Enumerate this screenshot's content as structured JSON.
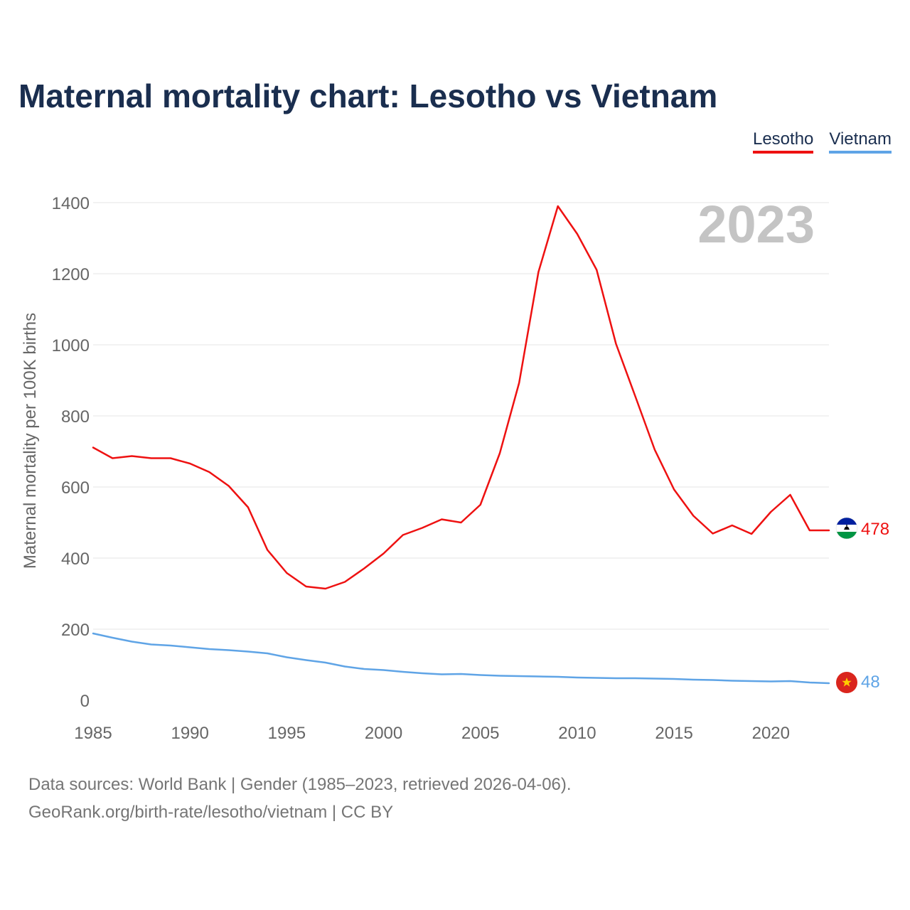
{
  "title": "Maternal mortality chart: Lesotho vs Vietnam",
  "legend": [
    {
      "name": "Lesotho",
      "color": "#ee1111"
    },
    {
      "name": "Vietnam",
      "color": "#5fa4e6"
    }
  ],
  "footer": {
    "source": "Data sources: World Bank | Gender (1985–2023, retrieved 2026-04-06).",
    "link": "GeoRank.org/birth-rate/lesotho/vietnam | CC BY"
  },
  "chart_data": {
    "type": "line",
    "title": "Maternal mortality chart: Lesotho vs Vietnam",
    "xlabel": "",
    "ylabel": "Maternal mortality per 100K births",
    "year_label": "2023",
    "xlim": [
      1985,
      2023
    ],
    "ylim": [
      0,
      1400
    ],
    "x_ticks": [
      1985,
      1990,
      1995,
      2000,
      2005,
      2010,
      2015,
      2020
    ],
    "y_ticks": [
      0,
      200,
      400,
      600,
      800,
      1000,
      1200,
      1400
    ],
    "grid": true,
    "legend_position": "top-right",
    "x": [
      1985,
      1986,
      1987,
      1988,
      1989,
      1990,
      1991,
      1992,
      1993,
      1994,
      1995,
      1996,
      1997,
      1998,
      1999,
      2000,
      2001,
      2002,
      2003,
      2004,
      2005,
      2006,
      2007,
      2008,
      2009,
      2010,
      2011,
      2012,
      2013,
      2014,
      2015,
      2016,
      2017,
      2018,
      2019,
      2020,
      2021,
      2022,
      2023
    ],
    "series": [
      {
        "name": "Lesotho",
        "color": "#ee1111",
        "end_label": "478",
        "values": [
          711,
          681,
          687,
          681,
          681,
          666,
          642,
          603,
          543,
          423,
          358,
          320,
          314,
          333,
          371,
          413,
          465,
          485,
          509,
          500,
          550,
          695,
          893,
          1205,
          1390,
          1312,
          1211,
          1003,
          855,
          705,
          593,
          519,
          469,
          492,
          468,
          530,
          578,
          478,
          478
        ]
      },
      {
        "name": "Vietnam",
        "color": "#5fa4e6",
        "end_label": "48",
        "values": [
          188,
          176,
          165,
          157,
          154,
          149,
          144,
          141,
          137,
          132,
          121,
          113,
          106,
          95,
          88,
          85,
          80,
          76,
          73,
          74,
          71,
          69,
          68,
          67,
          66,
          64,
          63,
          62,
          62,
          61,
          60,
          58,
          57,
          55,
          54,
          53,
          54,
          50,
          48
        ]
      }
    ]
  }
}
